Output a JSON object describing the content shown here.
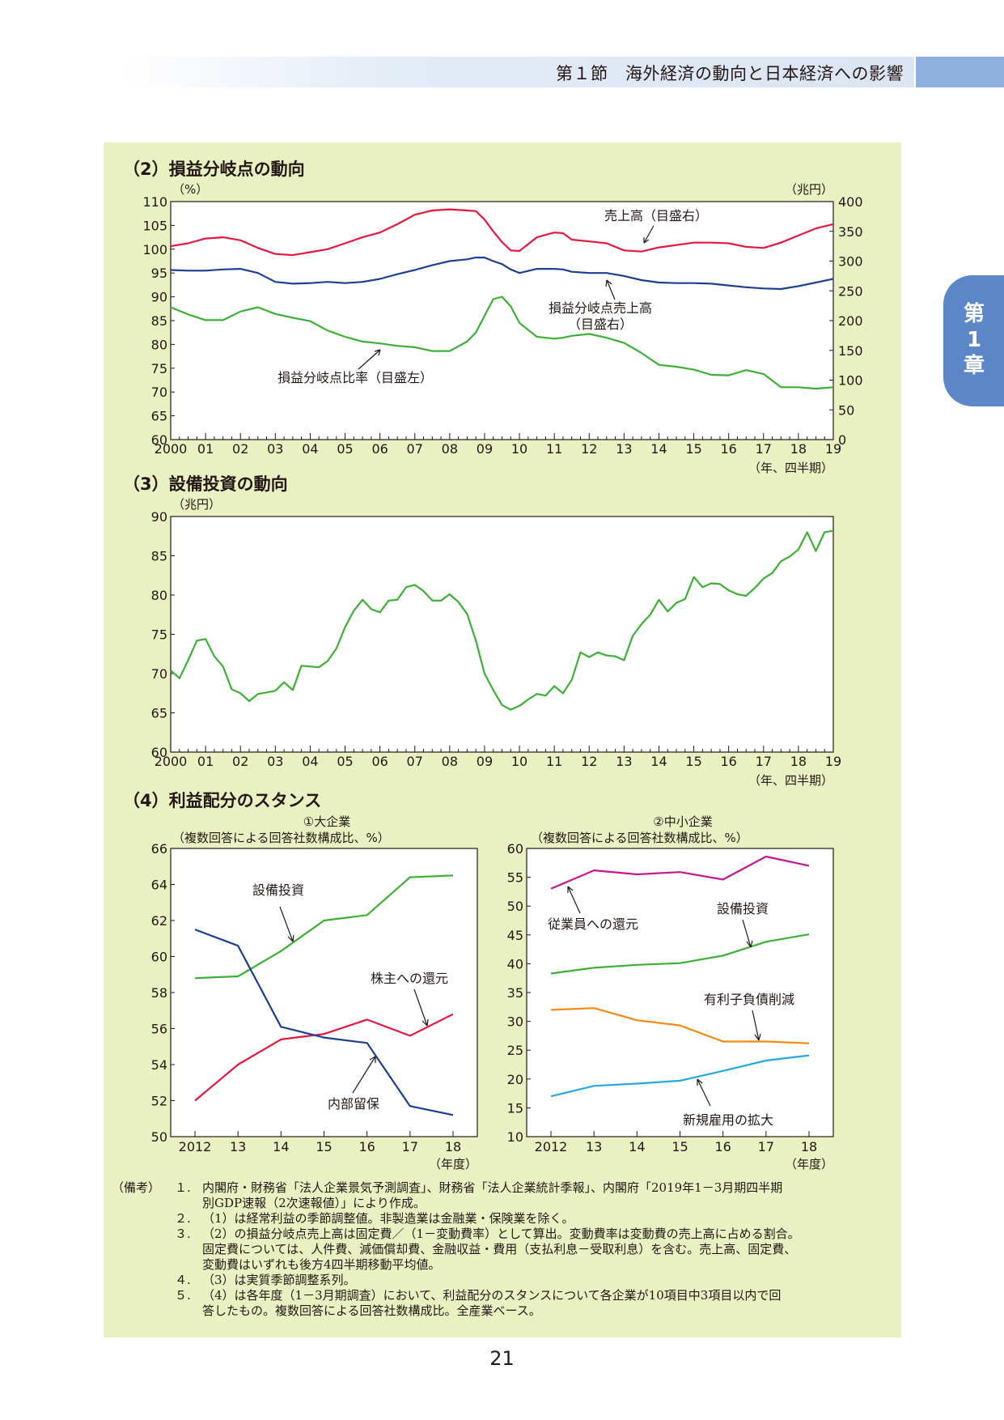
{
  "header": {
    "section": "第１節　海外経済の動向と日本経済への影響"
  },
  "chapter_tab": {
    "lines": [
      "第",
      "1",
      "章"
    ]
  },
  "page_number": "21",
  "colors": {
    "red": "#e4173f",
    "blue": "#1c3f94",
    "green": "#3cb034",
    "magenta": "#c6168d",
    "orange": "#f08a12",
    "cyan": "#25a8e0",
    "panel": "#e9f1c2"
  },
  "chart_data": [
    {
      "id": "breakeven",
      "type": "line",
      "title": "（2）損益分岐点の動向",
      "left_unit": "（%）",
      "right_unit": "（兆円）",
      "ylim_left": [
        60,
        110
      ],
      "yticks_left": [
        "110",
        "105",
        "100",
        "95",
        "90",
        "85",
        "80",
        "75",
        "70",
        "65",
        "60"
      ],
      "ylim_right": [
        0,
        400
      ],
      "yticks_right": [
        "400",
        "350",
        "300",
        "250",
        "200",
        "150",
        "100",
        "50",
        "0"
      ],
      "x_range": [
        2000.0,
        2019.0
      ],
      "x_tick_labels": [
        "2000",
        "01",
        "02",
        "03",
        "04",
        "05",
        "06",
        "07",
        "08",
        "09",
        "10",
        "11",
        "12",
        "13",
        "14",
        "15",
        "16",
        "17",
        "18",
        "19"
      ],
      "x_unit": "（年、四半期）",
      "series": [
        {
          "name": "売上高（目盛右）",
          "axis": "right",
          "color": "#e4173f",
          "x": [
            2000.0,
            2000.5,
            2001.0,
            2001.5,
            2002.0,
            2002.5,
            2003.0,
            2003.5,
            2004.0,
            2004.5,
            2005.0,
            2005.5,
            2006.0,
            2006.5,
            2007.0,
            2007.5,
            2008.0,
            2008.5,
            2008.75,
            2009.0,
            2009.25,
            2009.5,
            2009.75,
            2010.0,
            2010.5,
            2011.0,
            2011.25,
            2011.5,
            2012.0,
            2012.5,
            2013.0,
            2013.5,
            2014.0,
            2014.5,
            2015.0,
            2015.5,
            2016.0,
            2016.5,
            2017.0,
            2017.5,
            2018.0,
            2018.5,
            2019.0
          ],
          "y": [
            325,
            330,
            338,
            340,
            335,
            322,
            312,
            310,
            315,
            320,
            330,
            340,
            348,
            362,
            378,
            385,
            387,
            385,
            384,
            370,
            350,
            332,
            318,
            317,
            340,
            348,
            347,
            336,
            333,
            330,
            318,
            316,
            323,
            327,
            331,
            331,
            330,
            324,
            322,
            331,
            343,
            355,
            362
          ]
        },
        {
          "name": "損益分岐点売上高（目盛右）",
          "axis": "right",
          "color": "#1c3f94",
          "x": [
            2000.0,
            2000.5,
            2001.0,
            2001.5,
            2002.0,
            2002.5,
            2003.0,
            2003.5,
            2004.0,
            2004.5,
            2005.0,
            2005.5,
            2006.0,
            2006.5,
            2007.0,
            2007.5,
            2008.0,
            2008.5,
            2008.75,
            2009.0,
            2009.25,
            2009.5,
            2009.75,
            2010.0,
            2010.5,
            2011.0,
            2011.25,
            2011.5,
            2012.0,
            2012.5,
            2013.0,
            2013.5,
            2014.0,
            2014.5,
            2015.0,
            2015.5,
            2016.0,
            2016.5,
            2017.0,
            2017.5,
            2018.0,
            2018.5,
            2019.0
          ],
          "y": [
            285,
            284,
            284,
            286,
            287,
            280,
            265,
            262,
            263,
            265,
            263,
            265,
            270,
            278,
            285,
            293,
            300,
            303,
            306,
            306,
            300,
            295,
            286,
            280,
            287,
            287,
            286,
            282,
            280,
            280,
            275,
            268,
            264,
            263,
            263,
            262,
            259,
            256,
            254,
            253,
            258,
            264,
            270
          ]
        },
        {
          "name": "損益分岐点比率（目盛左）",
          "axis": "left",
          "color": "#3cb034",
          "x": [
            2000.0,
            2000.5,
            2001.0,
            2001.5,
            2002.0,
            2002.5,
            2003.0,
            2003.5,
            2004.0,
            2004.5,
            2005.0,
            2005.5,
            2006.0,
            2006.5,
            2007.0,
            2007.5,
            2008.0,
            2008.5,
            2008.75,
            2009.0,
            2009.25,
            2009.5,
            2009.75,
            2010.0,
            2010.5,
            2011.0,
            2011.25,
            2011.5,
            2012.0,
            2012.5,
            2013.0,
            2013.5,
            2014.0,
            2014.5,
            2015.0,
            2015.5,
            2016.0,
            2016.5,
            2017.0,
            2017.5,
            2018.0,
            2018.5,
            2019.0
          ],
          "y": [
            87.8,
            86.3,
            85.1,
            85.1,
            86.9,
            87.8,
            86.4,
            85.6,
            84.9,
            82.9,
            81.6,
            80.6,
            80.2,
            79.7,
            79.4,
            78.6,
            78.6,
            80.6,
            82.5,
            86.0,
            89.5,
            90.0,
            88.0,
            84.5,
            81.6,
            81.2,
            81.4,
            81.8,
            82.2,
            81.4,
            80.3,
            78.2,
            75.7,
            75.3,
            74.7,
            73.6,
            73.5,
            74.6,
            73.8,
            71.0,
            71.0,
            70.7,
            71.0
          ]
        }
      ],
      "annotations": {
        "sales": "売上高（目盛右）",
        "bep_sales_1": "損益分岐点売上高",
        "bep_sales_2": "（目盛右）",
        "bep_ratio": "損益分岐点比率（目盛左）"
      }
    },
    {
      "id": "capex",
      "type": "line",
      "title": "（3）設備投資の動向",
      "left_unit": "（兆円）",
      "ylim": [
        60,
        90
      ],
      "yticks": [
        "90",
        "85",
        "80",
        "75",
        "70",
        "65",
        "60"
      ],
      "x_range": [
        2000.0,
        2019.0
      ],
      "x_tick_labels": [
        "2000",
        "01",
        "02",
        "03",
        "04",
        "05",
        "06",
        "07",
        "08",
        "09",
        "10",
        "11",
        "12",
        "13",
        "14",
        "15",
        "16",
        "17",
        "18",
        "19"
      ],
      "x_unit": "（年、四半期）",
      "series": [
        {
          "name": "",
          "color": "#3cb034",
          "x": [
            2000.0,
            2000.25,
            2000.5,
            2000.75,
            2001.0,
            2001.25,
            2001.5,
            2001.75,
            2002.0,
            2002.25,
            2002.5,
            2002.75,
            2003.0,
            2003.25,
            2003.5,
            2003.75,
            2004.0,
            2004.25,
            2004.5,
            2004.75,
            2005.0,
            2005.25,
            2005.5,
            2005.75,
            2006.0,
            2006.25,
            2006.5,
            2006.75,
            2007.0,
            2007.25,
            2007.5,
            2007.75,
            2008.0,
            2008.25,
            2008.5,
            2008.75,
            2009.0,
            2009.25,
            2009.5,
            2009.75,
            2010.0,
            2010.25,
            2010.5,
            2010.75,
            2011.0,
            2011.25,
            2011.5,
            2011.75,
            2012.0,
            2012.25,
            2012.5,
            2012.75,
            2013.0,
            2013.25,
            2013.5,
            2013.75,
            2014.0,
            2014.25,
            2014.5,
            2014.75,
            2015.0,
            2015.25,
            2015.5,
            2015.75,
            2016.0,
            2016.25,
            2016.5,
            2016.75,
            2017.0,
            2017.25,
            2017.5,
            2017.75,
            2018.0,
            2018.25,
            2018.5,
            2018.75,
            2019.0
          ],
          "y": [
            70.4,
            69.4,
            71.7,
            74.2,
            74.4,
            72.2,
            70.9,
            68.0,
            67.5,
            66.5,
            67.4,
            67.6,
            67.8,
            68.9,
            67.9,
            71.0,
            70.9,
            70.8,
            71.6,
            73.2,
            75.9,
            78.0,
            79.4,
            78.2,
            77.8,
            79.3,
            79.4,
            81.0,
            81.3,
            80.5,
            79.3,
            79.3,
            80.1,
            79.1,
            77.6,
            74.2,
            70.0,
            67.9,
            66.0,
            65.4,
            65.9,
            66.7,
            67.4,
            67.2,
            68.4,
            67.5,
            69.2,
            72.7,
            72.1,
            72.7,
            72.3,
            72.2,
            71.7,
            74.8,
            76.3,
            77.5,
            79.4,
            77.9,
            79.0,
            79.5,
            82.3,
            81.0,
            81.5,
            81.4,
            80.6,
            80.1,
            79.9,
            80.9,
            82.1,
            82.8,
            84.3,
            84.9,
            85.8,
            88.0,
            85.6,
            88.0,
            88.2
          ]
        }
      ]
    },
    {
      "id": "large",
      "type": "line",
      "title": "（4）利益配分のスタンス",
      "subtitle": "①大企業",
      "ylabel": "（複数回答による回答社数構成比、%）",
      "ylim": [
        50,
        66
      ],
      "yticks": [
        "66",
        "64",
        "62",
        "60",
        "58",
        "56",
        "54",
        "52",
        "50"
      ],
      "categories": [
        "2012",
        "13",
        "14",
        "15",
        "16",
        "17",
        "18"
      ],
      "x_unit": "（年度）",
      "series": [
        {
          "name": "設備投資",
          "color": "#3cb034",
          "values": [
            58.8,
            58.9,
            60.3,
            62.0,
            62.3,
            64.4,
            64.5
          ]
        },
        {
          "name": "株主への還元",
          "color": "#e4173f",
          "values": [
            52.0,
            54.0,
            55.4,
            55.7,
            56.5,
            55.6,
            56.8
          ]
        },
        {
          "name": "内部留保",
          "color": "#1c3f94",
          "values": [
            61.5,
            60.6,
            56.1,
            55.5,
            55.2,
            51.7,
            51.2
          ]
        }
      ]
    },
    {
      "id": "sme",
      "type": "line",
      "subtitle": "②中小企業",
      "ylabel": "（複数回答による回答社数構成比、%）",
      "ylim": [
        10,
        60
      ],
      "yticks": [
        "60",
        "55",
        "50",
        "45",
        "40",
        "35",
        "30",
        "25",
        "20",
        "15",
        "10"
      ],
      "categories": [
        "2012",
        "13",
        "14",
        "15",
        "16",
        "17",
        "18"
      ],
      "x_unit": "（年度）",
      "series": [
        {
          "name": "従業員への還元",
          "color": "#c6168d",
          "values": [
            53.0,
            56.2,
            55.5,
            55.9,
            54.6,
            58.6,
            57.0
          ]
        },
        {
          "name": "設備投資",
          "color": "#3cb034",
          "values": [
            38.3,
            39.3,
            39.8,
            40.1,
            41.4,
            43.8,
            45.1
          ]
        },
        {
          "name": "有利子負債削減",
          "color": "#f08a12",
          "values": [
            32.0,
            32.3,
            30.2,
            29.3,
            26.5,
            26.5,
            26.2
          ]
        },
        {
          "name": "新規雇用の拡大",
          "color": "#25a8e0",
          "values": [
            17.0,
            18.8,
            19.2,
            19.7,
            21.4,
            23.2,
            24.1
          ]
        }
      ]
    }
  ],
  "notes": {
    "lead": "（備考）",
    "items": [
      {
        "num": "１.",
        "lines": [
          "内閣府・財務省「法人企業景気予測調査」、財務省「法人企業統計季報」、内閣府「2019年1－3月期四半期",
          "別GDP速報（2次速報値）」により作成。"
        ]
      },
      {
        "num": "２.",
        "lines": [
          "（1）は経常利益の季節調整値。非製造業は金融業・保険業を除く。"
        ]
      },
      {
        "num": "３.",
        "lines": [
          "（2）の損益分岐点売上高は固定費／（1－変動費率）として算出。変動費率は変動費の売上高に占める割合。",
          "固定費については、人件費、減価償却費、金融収益・費用（支払利息－受取利息）を含む。売上高、固定費、",
          "変動費はいずれも後方4四半期移動平均値。"
        ]
      },
      {
        "num": "４.",
        "lines": [
          "（3）は実質季節調整系列。"
        ]
      },
      {
        "num": "５.",
        "lines": [
          "（4）は各年度（1－3月期調査）において、利益配分のスタンスについて各企業が10項目中3項目以内で回",
          "答したもの。複数回答による回答社数構成比。全産業ベース。"
        ]
      }
    ]
  }
}
